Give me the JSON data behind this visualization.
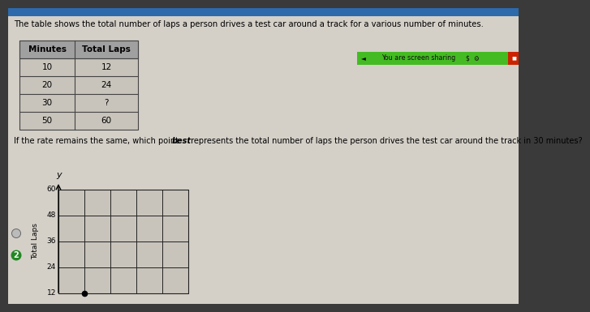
{
  "bg_color": "#3a3a3a",
  "content_bg": "#d4d0c8",
  "top_bar_color": "#2d6aab",
  "title_text": "The table shows the total number of laps a person drives a test car around a track for a various number of minutes.",
  "table_headers": [
    "Minutes",
    "Total Laps"
  ],
  "table_rows": [
    [
      "10",
      "12"
    ],
    [
      "20",
      "24"
    ],
    [
      "30",
      "?"
    ],
    [
      "50",
      "60"
    ]
  ],
  "table_header_bg": "#a0a0a0",
  "table_cell_bg": "#c8c4bc",
  "table_border_color": "#444444",
  "question_text": "If the rate remains the same, which point ",
  "question_text_best": "best",
  "question_text_end": " represents the total number of laps the person drives the test car around the track in 30 minutes?",
  "screen_sharing_bar_color": "#44bb22",
  "screen_sharing_text": "You are screen sharing",
  "screen_sharing_icons_right": "$ ● ■",
  "screen_red_box": "#cc2200",
  "graph_yticks": [
    12,
    24,
    36,
    48,
    60
  ],
  "graph_ylabel": "Total Laps",
  "graph_y_label": "y",
  "graph_grid_color": "#222222",
  "graph_bg": "#c8c4bc",
  "answer_circle_color": "#228822",
  "answer_letter": "2",
  "option_circle_color": "#bbbbbb",
  "dot_col": 1,
  "dot_yval": 12,
  "num_cols": 5,
  "num_rows": 5,
  "title_fontsize": 7.2,
  "table_fontsize": 7.5,
  "question_fontsize": 7.0,
  "graph_tick_fontsize": 6.5,
  "graph_ylabel_fontsize": 6.5,
  "y_label_fontsize": 8.0
}
